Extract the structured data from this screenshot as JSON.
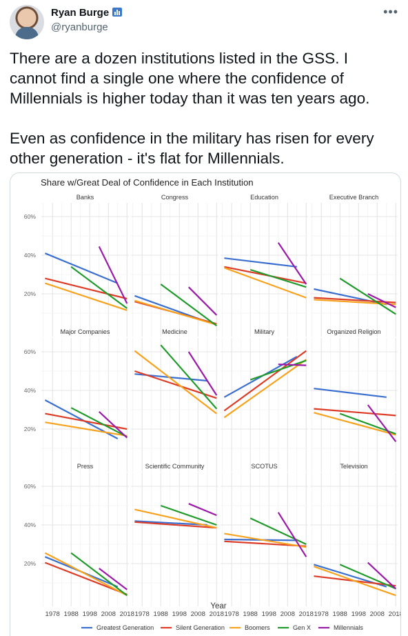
{
  "tweet": {
    "author_name": "Ryan Burge",
    "author_handle": "@ryanburge",
    "paragraphs": [
      "There are a dozen institutions listed in the GSS. I cannot find a single one where the confidence of Millennials is higher today than it was ten years ago.",
      "Even as confidence in the military has risen for every other generation - it's flat for Millennials."
    ],
    "more_icon": "more-horizontal-icon",
    "badge_icon": "bar-chart-icon"
  },
  "chart_data": {
    "type": "line",
    "title": "Share w/Great Deal of Confidence in Each Institution",
    "xlabel": "Year",
    "ylabel": "",
    "xlim": [
      1972,
      2019
    ],
    "ylim": [
      0,
      65
    ],
    "x_ticks": [
      1978,
      1988,
      1998,
      2008,
      2018
    ],
    "y_ticks": [
      20,
      40,
      60
    ],
    "y_tick_labels": [
      "20%",
      "40%",
      "60%"
    ],
    "grid": true,
    "legend_position": "bottom",
    "legend": [
      {
        "name": "Greatest Generation",
        "color": "#3a6fcf"
      },
      {
        "name": "Silent Generation",
        "color": "#dd3b26"
      },
      {
        "name": "Boomers",
        "color": "#f7a21c"
      },
      {
        "name": "Gen X",
        "color": "#1f9a2b"
      },
      {
        "name": "Millennials",
        "color": "#9a1aa8"
      }
    ],
    "panels": [
      {
        "title": "Banks",
        "series": [
          {
            "name": "Greatest Generation",
            "x": [
              1974,
              2013
            ],
            "y": [
              41,
              25.5
            ]
          },
          {
            "name": "Silent Generation",
            "x": [
              1974,
              2018
            ],
            "y": [
              28,
              17.5
            ]
          },
          {
            "name": "Boomers",
            "x": [
              1974,
              2018
            ],
            "y": [
              25.5,
              11.5
            ]
          },
          {
            "name": "Gen X",
            "x": [
              1988,
              2018
            ],
            "y": [
              34,
              12.5
            ]
          },
          {
            "name": "Millennials",
            "x": [
              2003,
              2018
            ],
            "y": [
              44.5,
              15
            ]
          }
        ]
      },
      {
        "title": "Congress",
        "series": [
          {
            "name": "Greatest Generation",
            "x": [
              1974,
              2013
            ],
            "y": [
              19,
              5.5
            ]
          },
          {
            "name": "Silent Generation",
            "x": [
              1974,
              2018
            ],
            "y": [
              16,
              4.5
            ]
          },
          {
            "name": "Boomers",
            "x": [
              1974,
              2018
            ],
            "y": [
              16.5,
              4
            ]
          },
          {
            "name": "Gen X",
            "x": [
              1988,
              2018
            ],
            "y": [
              25,
              3.5
            ]
          },
          {
            "name": "Millennials",
            "x": [
              2003,
              2018
            ],
            "y": [
              23.5,
              9
            ]
          }
        ]
      },
      {
        "title": "Education",
        "series": [
          {
            "name": "Greatest Generation",
            "x": [
              1974,
              2013
            ],
            "y": [
              38.5,
              34
            ]
          },
          {
            "name": "Silent Generation",
            "x": [
              1974,
              2018
            ],
            "y": [
              34,
              25.5
            ]
          },
          {
            "name": "Boomers",
            "x": [
              1974,
              2018
            ],
            "y": [
              33.5,
              18
            ]
          },
          {
            "name": "Gen X",
            "x": [
              1988,
              2018
            ],
            "y": [
              32.5,
              23.5
            ]
          },
          {
            "name": "Millennials",
            "x": [
              2003,
              2018
            ],
            "y": [
              46.5,
              25
            ]
          }
        ]
      },
      {
        "title": "Executive Branch",
        "series": [
          {
            "name": "Greatest Generation",
            "x": [
              1974,
              2013
            ],
            "y": [
              22.5,
              14.5
            ]
          },
          {
            "name": "Silent Generation",
            "x": [
              1974,
              2018
            ],
            "y": [
              18,
              15.5
            ]
          },
          {
            "name": "Boomers",
            "x": [
              1974,
              2018
            ],
            "y": [
              17,
              14.5
            ]
          },
          {
            "name": "Gen X",
            "x": [
              1988,
              2018
            ],
            "y": [
              28,
              9.5
            ]
          },
          {
            "name": "Millennials",
            "x": [
              2003,
              2018
            ],
            "y": [
              20,
              13
            ]
          }
        ]
      },
      {
        "title": "Major Companies",
        "series": [
          {
            "name": "Greatest Generation",
            "x": [
              1974,
              2013
            ],
            "y": [
              35,
              15
            ]
          },
          {
            "name": "Silent Generation",
            "x": [
              1974,
              2018
            ],
            "y": [
              28,
              20
            ]
          },
          {
            "name": "Boomers",
            "x": [
              1974,
              2018
            ],
            "y": [
              23.5,
              16.5
            ]
          },
          {
            "name": "Gen X",
            "x": [
              1988,
              2018
            ],
            "y": [
              31,
              16
            ]
          },
          {
            "name": "Millennials",
            "x": [
              2003,
              2018
            ],
            "y": [
              29,
              15.5
            ]
          }
        ]
      },
      {
        "title": "Medicine",
        "series": [
          {
            "name": "Greatest Generation",
            "x": [
              1974,
              2013
            ],
            "y": [
              48.5,
              45
            ]
          },
          {
            "name": "Silent Generation",
            "x": [
              1974,
              2018
            ],
            "y": [
              50,
              36
            ]
          },
          {
            "name": "Boomers",
            "x": [
              1974,
              2018
            ],
            "y": [
              60.5,
              28
            ]
          },
          {
            "name": "Gen X",
            "x": [
              1988,
              2018
            ],
            "y": [
              63.5,
              30.5
            ]
          },
          {
            "name": "Millennials",
            "x": [
              2003,
              2018
            ],
            "y": [
              60,
              37.5
            ]
          }
        ]
      },
      {
        "title": "Military",
        "series": [
          {
            "name": "Greatest Generation",
            "x": [
              1974,
              2013
            ],
            "y": [
              36.5,
              57.5
            ]
          },
          {
            "name": "Silent Generation",
            "x": [
              1974,
              2018
            ],
            "y": [
              29.5,
              60.5
            ]
          },
          {
            "name": "Boomers",
            "x": [
              1974,
              2018
            ],
            "y": [
              26,
              56
            ]
          },
          {
            "name": "Gen X",
            "x": [
              1988,
              2018
            ],
            "y": [
              45.5,
              55.5
            ]
          },
          {
            "name": "Millennials",
            "x": [
              2003,
              2018
            ],
            "y": [
              53.5,
              53
            ]
          }
        ]
      },
      {
        "title": "Organized Religion",
        "series": [
          {
            "name": "Greatest Generation",
            "x": [
              1974,
              2013
            ],
            "y": [
              41,
              36.5
            ]
          },
          {
            "name": "Silent Generation",
            "x": [
              1974,
              2018
            ],
            "y": [
              30.5,
              27
            ]
          },
          {
            "name": "Boomers",
            "x": [
              1974,
              2018
            ],
            "y": [
              28.5,
              17
            ]
          },
          {
            "name": "Gen X",
            "x": [
              1988,
              2018
            ],
            "y": [
              28,
              17.5
            ]
          },
          {
            "name": "Millennials",
            "x": [
              2003,
              2018
            ],
            "y": [
              32.5,
              13.5
            ]
          }
        ]
      },
      {
        "title": "Press",
        "series": [
          {
            "name": "Greatest Generation",
            "x": [
              1974,
              2013
            ],
            "y": [
              23.5,
              8
            ]
          },
          {
            "name": "Silent Generation",
            "x": [
              1974,
              2018
            ],
            "y": [
              20.5,
              4
            ]
          },
          {
            "name": "Boomers",
            "x": [
              1974,
              2018
            ],
            "y": [
              25.5,
              3.5
            ]
          },
          {
            "name": "Gen X",
            "x": [
              1988,
              2018
            ],
            "y": [
              25.5,
              3.5
            ]
          },
          {
            "name": "Millennials",
            "x": [
              2003,
              2018
            ],
            "y": [
              17.5,
              6.5
            ]
          }
        ]
      },
      {
        "title": "Scientific Community",
        "series": [
          {
            "name": "Greatest Generation",
            "x": [
              1974,
              2013
            ],
            "y": [
              42,
              40
            ]
          },
          {
            "name": "Silent Generation",
            "x": [
              1974,
              2018
            ],
            "y": [
              41.5,
              38.5
            ]
          },
          {
            "name": "Boomers",
            "x": [
              1974,
              2018
            ],
            "y": [
              48,
              38.5
            ]
          },
          {
            "name": "Gen X",
            "x": [
              1988,
              2018
            ],
            "y": [
              50,
              40
            ]
          },
          {
            "name": "Millennials",
            "x": [
              2003,
              2018
            ],
            "y": [
              51,
              45
            ]
          }
        ]
      },
      {
        "title": "SCOTUS",
        "series": [
          {
            "name": "Greatest Generation",
            "x": [
              1974,
              2013
            ],
            "y": [
              32.5,
              32
            ]
          },
          {
            "name": "Silent Generation",
            "x": [
              1974,
              2018
            ],
            "y": [
              31.5,
              29
            ]
          },
          {
            "name": "Boomers",
            "x": [
              1974,
              2018
            ],
            "y": [
              35.5,
              28.5
            ]
          },
          {
            "name": "Gen X",
            "x": [
              1988,
              2018
            ],
            "y": [
              43.5,
              30
            ]
          },
          {
            "name": "Millennials",
            "x": [
              2003,
              2018
            ],
            "y": [
              46.5,
              23.5
            ]
          }
        ]
      },
      {
        "title": "Television",
        "series": [
          {
            "name": "Greatest Generation",
            "x": [
              1974,
              2013
            ],
            "y": [
              19.5,
              8
            ]
          },
          {
            "name": "Silent Generation",
            "x": [
              1974,
              2018
            ],
            "y": [
              13.5,
              8.5
            ]
          },
          {
            "name": "Boomers",
            "x": [
              1974,
              2018
            ],
            "y": [
              18.5,
              3.5
            ]
          },
          {
            "name": "Gen X",
            "x": [
              1988,
              2018
            ],
            "y": [
              19.5,
              7
            ]
          },
          {
            "name": "Millennials",
            "x": [
              2003,
              2018
            ],
            "y": [
              20.5,
              7
            ]
          }
        ]
      }
    ]
  }
}
